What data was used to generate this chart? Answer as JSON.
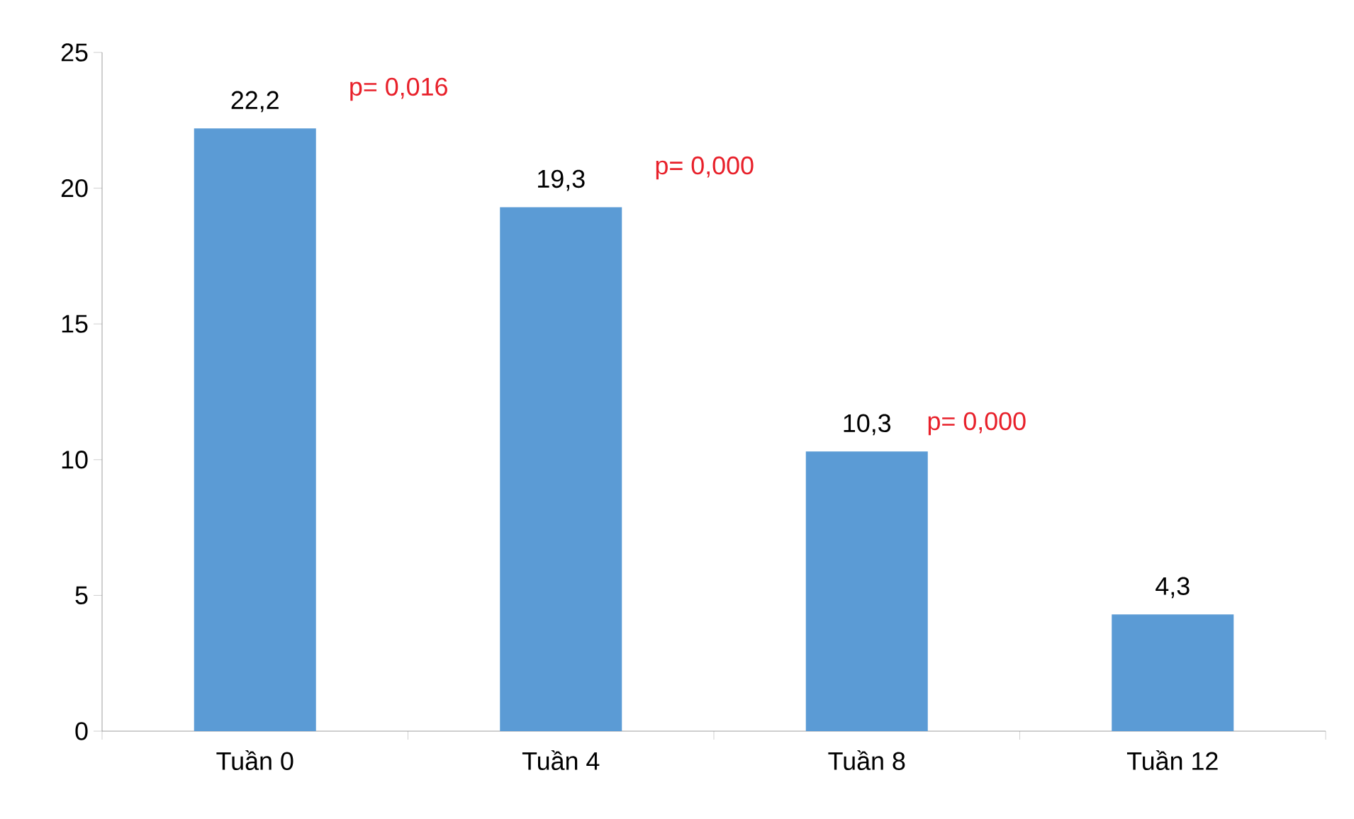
{
  "chart_data": {
    "type": "bar",
    "categories": [
      "Tuần 0",
      "Tuần 4",
      "Tuần 8",
      "Tuần 12"
    ],
    "values": [
      22.2,
      19.3,
      10.3,
      4.3
    ],
    "value_labels": [
      "22,2",
      "19,3",
      "10,3",
      "4,3"
    ],
    "color": "#5b9bd5",
    "ylim": [
      0,
      25
    ],
    "yticks": [
      0,
      5,
      10,
      15,
      20,
      25
    ],
    "grid": false,
    "annotations": [
      "p= 0,016",
      "p= 0,000",
      "p= 0,000"
    ]
  }
}
